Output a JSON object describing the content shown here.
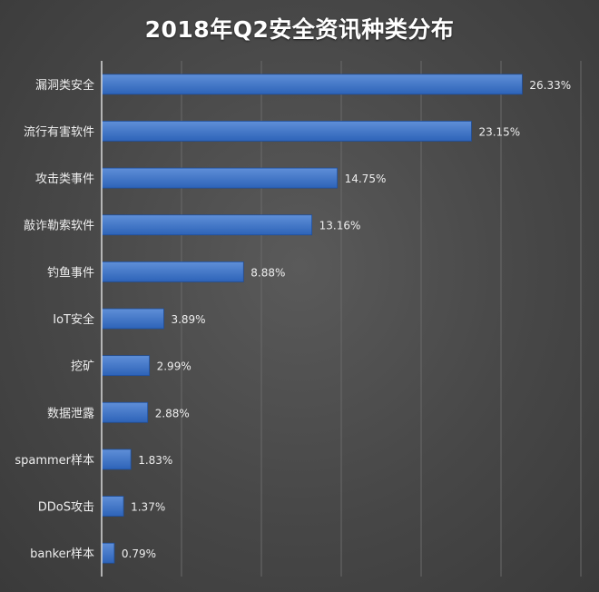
{
  "colors": {
    "bar_top": "#5f8fd8",
    "bar_bottom": "#2d63b8",
    "bar_edge": "#1f4f9c",
    "gridline": "#6a6a6a",
    "axis_line": "#d9d9d9",
    "label_text": "#eeeeee"
  },
  "chart_data": {
    "type": "bar",
    "orientation": "horizontal",
    "title": "2018年Q2安全资讯种类分布",
    "xlabel": "",
    "ylabel": "",
    "xlim": [
      0,
      30
    ],
    "grid": true,
    "legend": "none",
    "categories": [
      "漏洞类安全",
      "流行有害软件",
      "攻击类事件",
      "敲诈勒索软件",
      "钓鱼事件",
      "IoT安全",
      "挖矿",
      "数据泄露",
      "spammer样本",
      "DDoS攻击",
      "banker样本"
    ],
    "values": [
      26.33,
      23.15,
      14.75,
      13.16,
      8.88,
      3.89,
      2.99,
      2.88,
      1.83,
      1.37,
      0.79
    ],
    "value_labels": [
      "26.33%",
      "23.15%",
      "14.75%",
      "13.16%",
      "8.88%",
      "3.89%",
      "2.99%",
      "2.88%",
      "1.83%",
      "1.37%",
      "0.79%"
    ]
  }
}
